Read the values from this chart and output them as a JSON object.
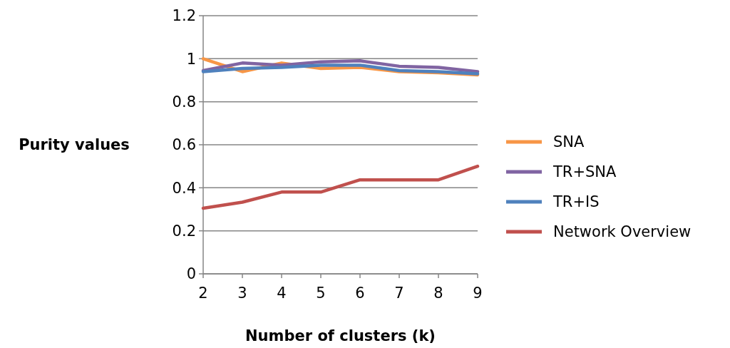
{
  "chart_data": {
    "type": "line",
    "xlabel": "Number of clusters (k)",
    "ylabel": "Purity values",
    "x": [
      2,
      3,
      4,
      5,
      6,
      7,
      8,
      9
    ],
    "xlim": [
      2,
      9
    ],
    "xticks": [
      2,
      3,
      4,
      5,
      6,
      7,
      8,
      9
    ],
    "ylim": [
      0,
      1.2
    ],
    "yticks": [
      0,
      0.2,
      0.4,
      0.6,
      0.8,
      1,
      1.2
    ],
    "grid": "y",
    "legend": "right",
    "marker": "none",
    "series": [
      {
        "name": "SNA",
        "color": "#f79646",
        "values": [
          1.0,
          0.94,
          0.98,
          0.955,
          0.96,
          0.94,
          0.935,
          0.925
        ]
      },
      {
        "name": "TR+SNA",
        "color": "#8064a2",
        "values": [
          0.945,
          0.98,
          0.97,
          0.985,
          0.99,
          0.965,
          0.96,
          0.94
        ]
      },
      {
        "name": "TR+IS",
        "color": "#4f81bd",
        "values": [
          0.94,
          0.955,
          0.96,
          0.97,
          0.97,
          0.945,
          0.94,
          0.93
        ]
      },
      {
        "name": "Network Overview",
        "color": "#c0504d",
        "values": [
          0.305,
          0.333,
          0.38,
          0.38,
          0.437,
          0.437,
          0.437,
          0.5
        ]
      }
    ]
  }
}
